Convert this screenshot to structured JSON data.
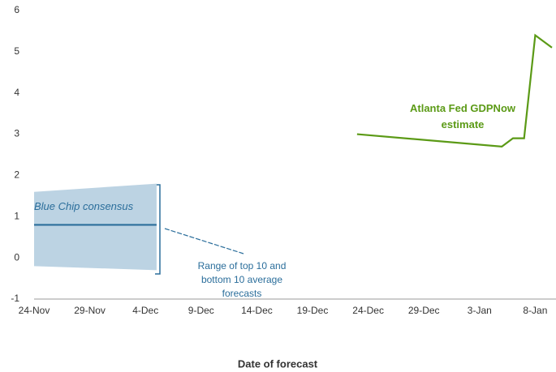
{
  "chart_data": {
    "type": "line",
    "x_label": "Date of forecast",
    "xlim": [
      0,
      46.5
    ],
    "xticks": [
      {
        "value": 0,
        "label": "24-Nov"
      },
      {
        "value": 5,
        "label": "29-Nov"
      },
      {
        "value": 10,
        "label": "4-Dec"
      },
      {
        "value": 15,
        "label": "9-Dec"
      },
      {
        "value": 20,
        "label": "14-Dec"
      },
      {
        "value": 25,
        "label": "19-Dec"
      },
      {
        "value": 30,
        "label": "24-Dec"
      },
      {
        "value": 35,
        "label": "29-Dec"
      },
      {
        "value": 40,
        "label": "3-Jan"
      },
      {
        "value": 45,
        "label": "8-Jan"
      }
    ],
    "ylim": [
      -1,
      6
    ],
    "yticks": [
      -1,
      0,
      1,
      2,
      3,
      4,
      5,
      6
    ],
    "grid": false,
    "series": [
      {
        "name": "Atlanta Fed GDPNow estimate",
        "color": "#5b9a16",
        "x": [
          29,
          42,
          43,
          44,
          45,
          46.5
        ],
        "values": [
          3.0,
          2.7,
          2.9,
          2.9,
          5.4,
          5.1
        ]
      },
      {
        "name": "Blue Chip consensus",
        "color": "#2b6e9b",
        "x": [
          0,
          11
        ],
        "values": [
          0.8,
          0.8
        ]
      }
    ],
    "band": {
      "name": "Range of top 10 and bottom 10 average forecasts",
      "color": "#bcd3e3",
      "x": [
        0,
        11
      ],
      "upper": [
        1.6,
        1.8
      ],
      "lower": [
        -0.2,
        -0.3
      ]
    }
  }
}
